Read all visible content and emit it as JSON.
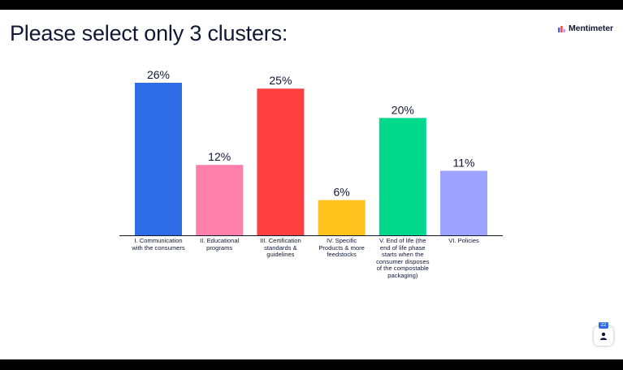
{
  "slide": {
    "title": "Please select only 3 clusters:"
  },
  "brand": {
    "name": "Mentimeter",
    "icon": "bar-chart-logo-icon"
  },
  "audience": {
    "count": "22",
    "icon": "person-icon"
  },
  "chart_data": {
    "type": "bar",
    "categories": [
      "I. Communication with the consumers",
      "II. Educational programs",
      "III. Certification standards & guidelines",
      "IV. Specific Products & more feedstocks",
      "V. End of life (the end of life phase starts when the consumer disposes of the compostable packaging)",
      "VI. Policies"
    ],
    "values": [
      26,
      12,
      25,
      6,
      20,
      11
    ],
    "value_labels": [
      "26%",
      "12%",
      "25%",
      "6%",
      "20%",
      "11%"
    ],
    "unit": "%",
    "colors": [
      "#2e6be6",
      "#ff80ab",
      "#ff4040",
      "#ffc21c",
      "#00d98b",
      "#9ea3ff"
    ],
    "ylim": [
      0,
      26
    ],
    "grid": false,
    "title": "",
    "xlabel": "",
    "ylabel": ""
  }
}
